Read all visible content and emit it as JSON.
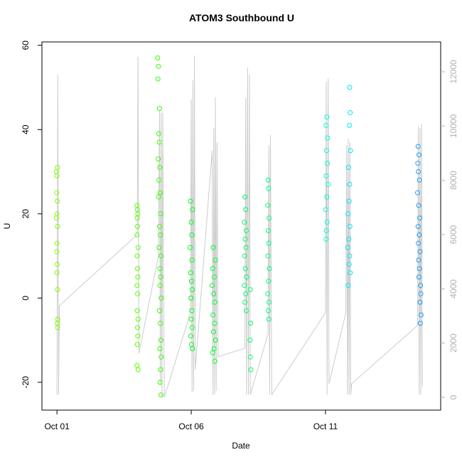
{
  "chart_data": {
    "type": "scatter",
    "title": "ATOM3 Southbound U",
    "x_label": "Date",
    "y_label": "U",
    "xlim": [
      0.44,
      15.29
    ],
    "ylim": [
      -26.6,
      60.8
    ],
    "y2lim": [
      -470,
      13100
    ],
    "xticks": [
      {
        "value": 1,
        "label": "Oct 01"
      },
      {
        "value": 6,
        "label": "Oct 06"
      },
      {
        "value": 11,
        "label": "Oct 11"
      }
    ],
    "yticks": [
      -20,
      0,
      20,
      40,
      60
    ],
    "y2ticks": [
      0,
      2000,
      4000,
      6000,
      8000,
      10000,
      12000
    ],
    "series": [
      {
        "color": "#cccccc",
        "axis": "y2",
        "x": [
          1.0,
          1.03,
          1.06,
          1.09,
          3.99,
          4.02,
          4.05,
          4.78,
          4.82,
          4.85,
          4.88,
          4.91,
          4.94,
          4.97,
          5.0,
          5.97,
          6.0,
          6.03,
          6.06,
          6.09,
          6.12,
          6.15,
          6.78,
          6.81,
          6.84,
          6.87,
          6.9,
          6.93,
          6.96,
          7.0,
          8.0,
          8.03,
          8.06,
          8.1,
          8.13,
          8.17,
          8.2,
          8.86,
          8.89,
          8.92,
          8.95,
          9.0,
          11.0,
          11.03,
          11.06,
          11.1,
          11.13,
          11.76,
          11.79,
          11.82,
          11.85,
          11.88,
          11.91,
          11.94,
          11.97,
          14.43,
          14.46,
          14.49,
          14.52,
          14.55,
          14.58,
          14.61
        ],
        "values": [
          100,
          11900,
          100,
          3380,
          6000,
          12550,
          1620,
          5210,
          10580,
          500,
          10500,
          0,
          10500,
          4170,
          0,
          3120,
          10980,
          180,
          11690,
          240,
          12600,
          1020,
          9100,
          100,
          9930,
          100,
          11060,
          240,
          9400,
          1500,
          1810,
          11060,
          100,
          12160,
          100,
          11900,
          100,
          2330,
          9280,
          100,
          9670,
          100,
          3120,
          11630,
          100,
          11760,
          500,
          3120,
          9280,
          100,
          9540,
          100,
          9400,
          100,
          500,
          2650,
          9980,
          100,
          9930,
          100,
          10060,
          400
        ]
      },
      {
        "color": "#80ff00",
        "x": [
          0.98,
          1.0,
          1.02,
          0.99,
          1.01,
          1.0,
          0.98,
          1.02,
          1.0,
          0.99,
          1.01,
          1.0,
          1.02,
          1.03,
          1.02,
          1.01
        ],
        "values": [
          30,
          29,
          31,
          25,
          23,
          20,
          19,
          17,
          13,
          11,
          8,
          6,
          2,
          -5,
          -7,
          -6
        ]
      },
      {
        "color": "#55ff00",
        "x": [
          3.98,
          4.0,
          4.01,
          3.99,
          4.0,
          3.98,
          4.02,
          3.99,
          4.0,
          4.01,
          3.98,
          4.0,
          3.99,
          4.02,
          4.0,
          4.01,
          3.99,
          3.98,
          4.02
        ],
        "values": [
          22,
          21,
          20,
          19,
          17,
          15,
          12,
          10,
          7,
          5,
          3,
          1,
          -3,
          -5,
          -7,
          -9,
          -11,
          -16,
          -17
        ]
      },
      {
        "color": "#33ff00",
        "x": [
          4.75,
          4.78,
          4.76,
          4.82,
          4.79,
          4.81,
          4.77,
          4.83,
          4.8,
          4.84,
          4.79,
          4.86,
          4.82,
          4.85,
          4.8,
          4.87,
          4.83,
          4.86,
          4.84,
          4.88,
          4.82,
          4.85,
          4.87,
          4.83,
          4.88,
          4.86,
          4.84,
          4.87
        ],
        "values": [
          57,
          55,
          52,
          45,
          39,
          37,
          33,
          31,
          28,
          25,
          24,
          20,
          17,
          15,
          12,
          10,
          7,
          5,
          3,
          0,
          -3,
          -6,
          -10,
          -12,
          -14,
          -17,
          -20,
          -23
        ]
      },
      {
        "color": "#00ff1a",
        "x": [
          5.97,
          6.05,
          6.0,
          6.02,
          5.96,
          6.03,
          5.98,
          6.01,
          6.04,
          5.99,
          6.02,
          6.0,
          6.03,
          5.98,
          6.01,
          6.04
        ],
        "values": [
          23,
          21,
          18,
          15,
          12,
          9,
          6,
          4,
          2,
          0,
          -3,
          -5,
          -7,
          -9,
          -11,
          -12
        ]
      },
      {
        "color": "#00ff33",
        "x": [
          6.82,
          6.9,
          6.8,
          6.86,
          6.78,
          6.84,
          6.88,
          6.81,
          6.87,
          6.83,
          6.9,
          6.85,
          6.8,
          6.88
        ],
        "values": [
          12,
          9,
          7,
          5,
          3,
          1,
          -1,
          -4,
          -6,
          -8,
          -10,
          -12,
          -13,
          -15
        ]
      },
      {
        "color": "#00ff66",
        "x": [
          8.0,
          8.03,
          7.98,
          8.05,
          8.01,
          8.04,
          7.99,
          8.02,
          8.06,
          7.98,
          8.03,
          8.0,
          8.05,
          8.2,
          8.21,
          8.19,
          8.2,
          8.22
        ],
        "values": [
          24,
          21,
          18,
          16,
          14,
          12,
          10,
          7,
          5,
          3,
          1,
          -1,
          -3,
          2,
          -6,
          -10,
          -14,
          -17
        ]
      },
      {
        "color": "#00ff80",
        "x": [
          8.86,
          8.88,
          8.85,
          8.9,
          8.87,
          8.89,
          8.86,
          8.91,
          8.88,
          8.85,
          8.9,
          8.87,
          8.89
        ],
        "values": [
          28,
          26,
          22,
          19,
          16,
          13,
          10,
          7,
          4,
          1,
          -1,
          -3,
          -5
        ]
      },
      {
        "color": "#00ffe0",
        "x": [
          11.05,
          11.02,
          11.08,
          11.04,
          11.07,
          11.03,
          11.1,
          11.05,
          11.01,
          11.06,
          11.03,
          11.02
        ],
        "values": [
          43,
          41,
          38,
          35,
          32,
          29,
          27,
          24,
          21,
          18,
          16,
          14
        ]
      },
      {
        "color": "#00e5ff",
        "x": [
          11.9,
          11.92,
          11.89,
          11.93,
          11.86,
          11.9,
          11.88,
          11.84,
          11.91,
          11.87,
          11.83,
          11.9,
          11.88,
          11.92,
          11.85
        ],
        "values": [
          50,
          44,
          41,
          35,
          31,
          27,
          23,
          20,
          17,
          14,
          12,
          10,
          8,
          6,
          3
        ]
      },
      {
        "color": "#1a9fff",
        "x": [
          14.45,
          14.48,
          14.44,
          14.46,
          14.5,
          14.43,
          14.47,
          14.51,
          14.45,
          14.49,
          14.46,
          14.52,
          14.47,
          14.5,
          14.48,
          14.54,
          14.55,
          14.52,
          14.56,
          14.53
        ],
        "values": [
          36,
          34,
          32,
          30,
          28,
          25,
          22,
          19,
          17,
          15,
          13,
          11,
          9,
          7,
          5,
          3,
          1,
          -1,
          -4,
          -6
        ]
      }
    ]
  }
}
